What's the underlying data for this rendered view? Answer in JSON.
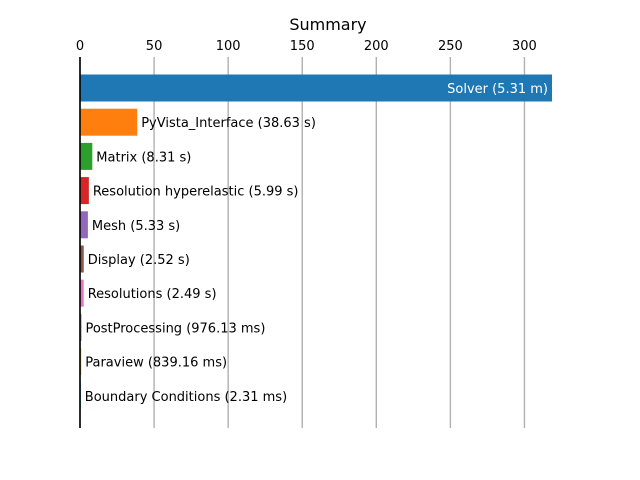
{
  "chart_data": {
    "type": "bar",
    "orientation": "horizontal",
    "title": "Summary",
    "xlabel": "",
    "ylabel": "",
    "xlim": [
      0,
      318.6
    ],
    "xticks": [
      0,
      50,
      100,
      150,
      200,
      250,
      300
    ],
    "x_axis_position": "top",
    "grid": "vertical",
    "legend": "none",
    "bars": [
      {
        "label": "Solver (5.31 m)",
        "value": 318.6,
        "color": "#1f77b4",
        "label_inside": true
      },
      {
        "label": "PyVista_Interface (38.63 s)",
        "value": 38.63,
        "color": "#ff7f0e"
      },
      {
        "label": "Matrix (8.31 s)",
        "value": 8.31,
        "color": "#2ca02c"
      },
      {
        "label": "Resolution hyperelastic (5.99 s)",
        "value": 5.99,
        "color": "#d62728"
      },
      {
        "label": "Mesh (5.33 s)",
        "value": 5.33,
        "color": "#9467bd"
      },
      {
        "label": "Display (2.52 s)",
        "value": 2.52,
        "color": "#8c564b"
      },
      {
        "label": "Resolutions (2.49 s)",
        "value": 2.49,
        "color": "#e377c2"
      },
      {
        "label": "PostProcessing (976.13 ms)",
        "value": 0.976,
        "color": "#7f7f7f"
      },
      {
        "label": "Paraview (839.16 ms)",
        "value": 0.839,
        "color": "#bcbd22"
      },
      {
        "label": "Boundary Conditions (2.31 ms)",
        "value": 0.0023,
        "color": "#17becf"
      }
    ]
  }
}
